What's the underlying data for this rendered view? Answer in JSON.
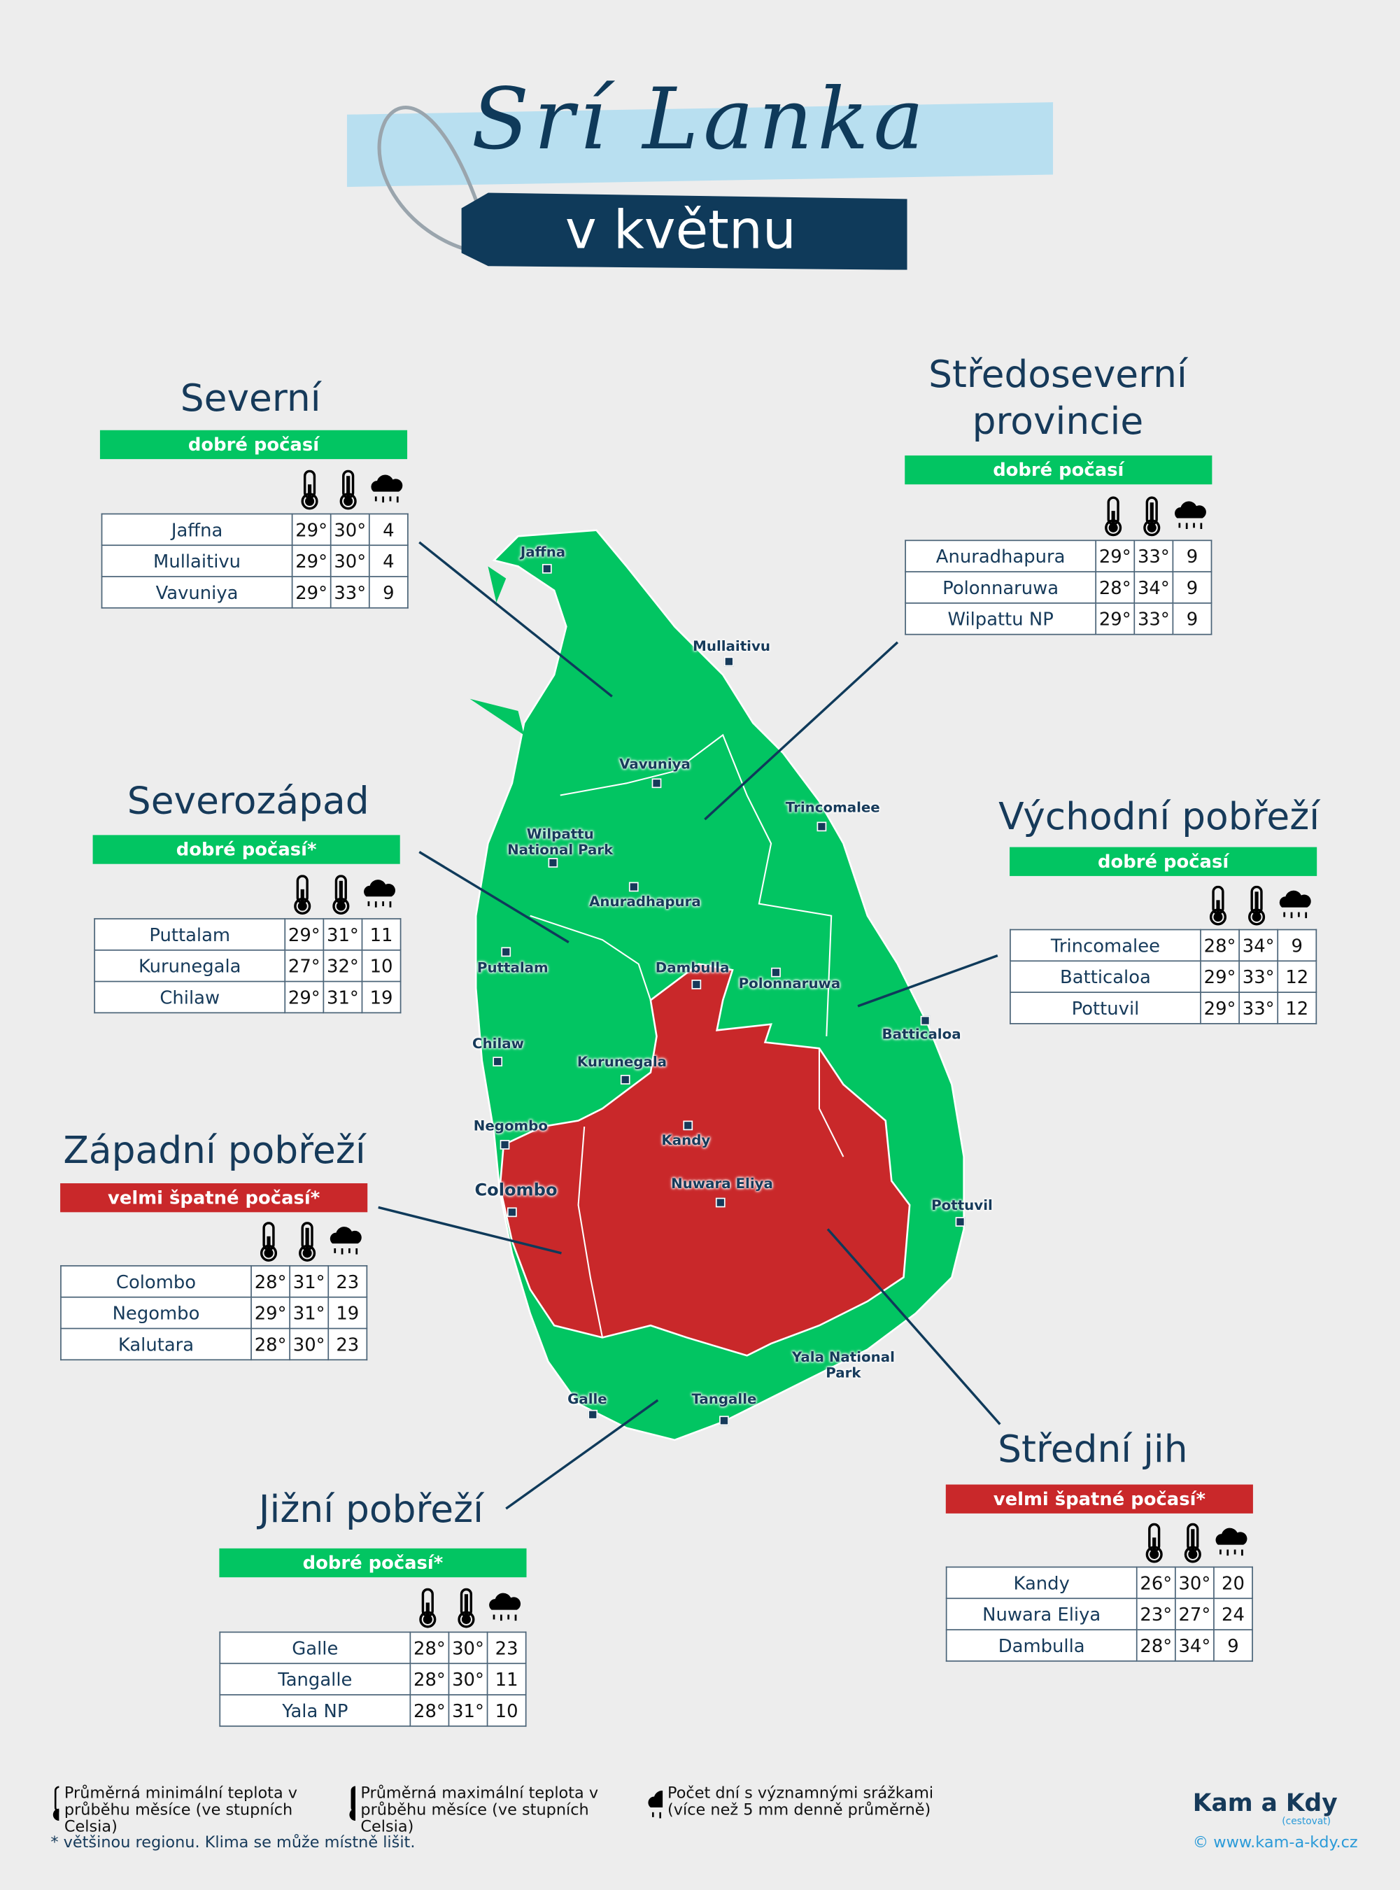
{
  "header": {
    "title": "Srí Lanka",
    "subtitle": "v květnu"
  },
  "colors": {
    "good": "#02c562",
    "bad": "#c9282a",
    "dark": "#0f3a5a",
    "banner": "#b8dff0"
  },
  "icons": [
    "thermometer-min-icon",
    "thermometer-max-icon",
    "rain-cloud-icon"
  ],
  "regions": [
    {
      "title": [
        "Severní"
      ],
      "status": "dobré počasí",
      "quality": "good",
      "rows": [
        [
          "Jaffna",
          "29°",
          "30°",
          "4"
        ],
        [
          "Mullaitivu",
          "29°",
          "30°",
          "4"
        ],
        [
          "Vavuniya",
          "29°",
          "33°",
          "9"
        ]
      ]
    },
    {
      "title": [
        "Středoseverní",
        "provincie"
      ],
      "status": "dobré počasí",
      "quality": "good",
      "rows": [
        [
          "Anuradhapura",
          "29°",
          "33°",
          "9"
        ],
        [
          "Polonnaruwa",
          "28°",
          "34°",
          "9"
        ],
        [
          "Wilpattu NP",
          "29°",
          "33°",
          "9"
        ]
      ]
    },
    {
      "title": [
        "Severozápad"
      ],
      "status": "dobré počasí*",
      "quality": "good",
      "rows": [
        [
          "Puttalam",
          "29°",
          "31°",
          "11"
        ],
        [
          "Kurunegala",
          "27°",
          "32°",
          "10"
        ],
        [
          "Chilaw",
          "29°",
          "31°",
          "19"
        ]
      ]
    },
    {
      "title": [
        "Východní pobřeží"
      ],
      "status": "dobré počasí",
      "quality": "good",
      "rows": [
        [
          "Trincomalee",
          "28°",
          "34°",
          "9"
        ],
        [
          "Batticaloa",
          "29°",
          "33°",
          "12"
        ],
        [
          "Pottuvil",
          "29°",
          "33°",
          "12"
        ]
      ]
    },
    {
      "title": [
        "Západní pobřeží"
      ],
      "status": "velmi špatné počasí*",
      "quality": "bad",
      "rows": [
        [
          "Colombo",
          "28°",
          "31°",
          "23"
        ],
        [
          "Negombo",
          "29°",
          "31°",
          "19"
        ],
        [
          "Kalutara",
          "28°",
          "30°",
          "23"
        ]
      ]
    },
    {
      "title": [
        "Jižní pobřeží"
      ],
      "status": "dobré počasí*",
      "quality": "good",
      "rows": [
        [
          "Galle",
          "28°",
          "30°",
          "23"
        ],
        [
          "Tangalle",
          "28°",
          "30°",
          "11"
        ],
        [
          "Yala NP",
          "28°",
          "31°",
          "10"
        ]
      ]
    },
    {
      "title": [
        "Střední jih"
      ],
      "status": "velmi špatné počasí*",
      "quality": "bad",
      "rows": [
        [
          "Kandy",
          "26°",
          "30°",
          "20"
        ],
        [
          "Nuwara Eliya",
          "23°",
          "27°",
          "24"
        ],
        [
          "Dambulla",
          "28°",
          "34°",
          "9"
        ]
      ]
    }
  ],
  "map_labels": [
    "Jaffna",
    "Mullaitivu",
    "Vavuniya",
    "Trincomalee",
    "Wilpattu National Park",
    "Anuradhapura",
    "Puttalam",
    "Dambulla",
    "Polonnaruwa",
    "Batticaloa",
    "Chilaw",
    "Kurunegala",
    "Negombo",
    "Kandy",
    "Colombo",
    "Nuwara Eliya",
    "Pottuvil",
    "Yala National Park",
    "Galle",
    "Tangalle"
  ],
  "legend": {
    "min": "Průměrná minimální teplota v průběhu měsíce (ve stupních Celsia)",
    "max": "Průměrná maximální teplota v průběhu měsíce (ve stupních Celsia)",
    "rain": "Počet dní s významnými srážkami (více než 5 mm denně průměrně)",
    "note": "* většinou regionu. Klima se může místně lišit."
  },
  "logo": {
    "text": "Kam a Kdy",
    "sub": "(cestovat)",
    "url": "© www.kam-a-kdy.cz"
  }
}
